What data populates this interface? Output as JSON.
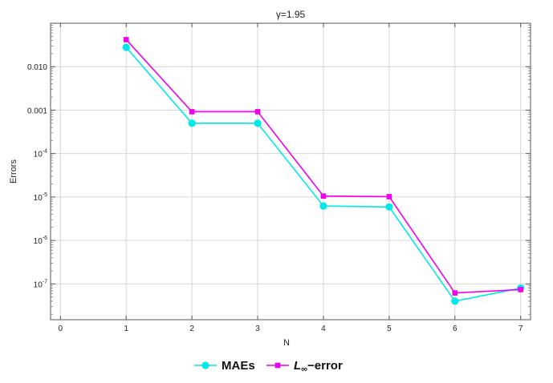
{
  "chart_data": {
    "type": "line",
    "title": "γ=1.95",
    "xlabel": "N",
    "ylabel": "Errors",
    "x": [
      1,
      2,
      3,
      4,
      5,
      6,
      7
    ],
    "xlim": [
      -0.15,
      7.15
    ],
    "ylim": [
      1.5e-08,
      0.1
    ],
    "yscale": "log",
    "x_ticks": [
      0,
      1,
      2,
      3,
      4,
      5,
      6,
      7
    ],
    "y_ticks": [
      {
        "value": 1e-07,
        "mantissa": "10",
        "exponent": "-7"
      },
      {
        "value": 1e-06,
        "mantissa": "10",
        "exponent": "-6"
      },
      {
        "value": 1e-05,
        "mantissa": "10",
        "exponent": "-5"
      },
      {
        "value": 0.0001,
        "mantissa": "10",
        "exponent": "-4"
      },
      {
        "value": 0.001,
        "label": "0.001"
      },
      {
        "value": 0.01,
        "label": "0.010"
      }
    ],
    "grid": true,
    "legend_position": "bottom-center",
    "series": [
      {
        "name": "MAEs",
        "color": "#00e8e8",
        "marker": "circle",
        "values": [
          0.028,
          0.0005,
          0.0005,
          6.2e-06,
          5.9e-06,
          4e-08,
          8e-08
        ]
      },
      {
        "name": "−error",
        "legend_symbol": "L∞",
        "color": "#ee00ee",
        "marker": "square",
        "values": [
          0.042,
          0.00092,
          0.00092,
          1.05e-05,
          1.02e-05,
          6.2e-08,
          7.4e-08
        ]
      }
    ]
  }
}
